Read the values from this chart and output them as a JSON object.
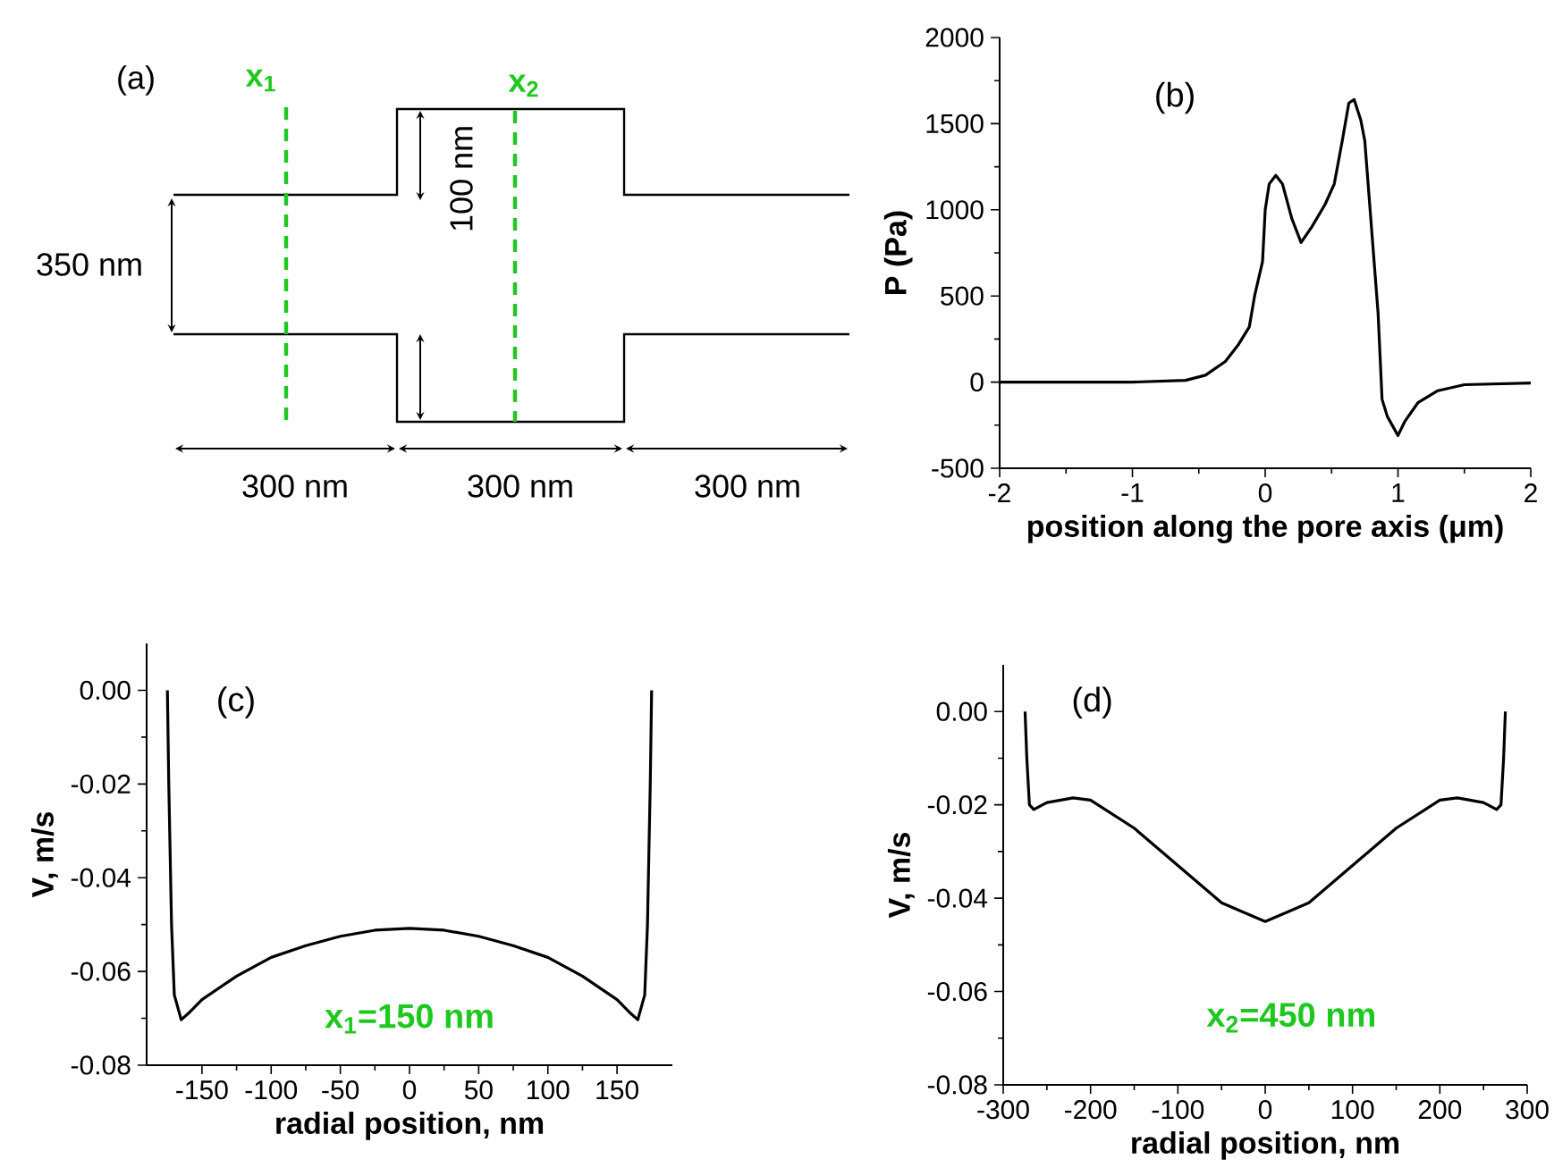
{
  "chart_data": [
    {
      "type": "other",
      "annotations": [
        "(a)",
        "x$_{1}$",
        "x$_{2}$",
        "350 nm",
        "100 nm",
        "300 nm",
        "300 nm",
        "300 nm"
      ]
    },
    {
      "type": "line",
      "xlabel": "position along the pore axis (μm)",
      "ylabel": "P (Pa)",
      "annotations": [
        "(b)"
      ],
      "xlim": [
        -2,
        2
      ],
      "ylim": [
        -500,
        2000
      ],
      "xticks": [
        -2,
        -1,
        0,
        1,
        2
      ],
      "yticks": [
        -500,
        0,
        500,
        1000,
        1500,
        2000
      ],
      "x": [
        -2,
        -1,
        -0.6,
        -0.45,
        -0.3,
        -0.2,
        -0.12,
        -0.08,
        -0.02,
        0.0,
        0.03,
        0.08,
        0.13,
        0.2,
        0.27,
        0.35,
        0.45,
        0.52,
        0.58,
        0.63,
        0.67,
        0.72,
        0.75,
        0.8,
        0.85,
        0.88,
        0.92,
        1.0,
        1.05,
        1.15,
        1.3,
        1.5,
        2
      ],
      "series": [
        {
          "color": "#000000",
          "values": [
            0,
            0,
            10,
            40,
            120,
            220,
            320,
            500,
            700,
            1000,
            1150,
            1200,
            1150,
            950,
            810,
            900,
            1030,
            1150,
            1400,
            1620,
            1640,
            1520,
            1400,
            900,
            400,
            -100,
            -200,
            -310,
            -230,
            -120,
            -50,
            -15,
            -5
          ]
        }
      ]
    },
    {
      "type": "line",
      "xlabel": "radial position, nm",
      "ylabel": "V, m/s",
      "annotations": [
        "(c)",
        "x$_{1}$=150 nm"
      ],
      "xlim": [
        -190,
        190
      ],
      "ylim": [
        -0.08,
        0.01
      ],
      "xticks": [
        -150,
        -100,
        -50,
        0,
        50,
        100,
        150
      ],
      "yticks": [
        {
          "value": -0.08,
          "label": "-0.08"
        },
        {
          "value": -0.06,
          "label": "-0.06"
        },
        {
          "value": -0.04,
          "label": "-0.04"
        },
        {
          "value": -0.02,
          "label": "-0.02"
        },
        {
          "value": 0,
          "label": "0.00"
        }
      ],
      "x": [
        -175,
        -174,
        -172,
        -170,
        -165,
        -160,
        -150,
        -125,
        -100,
        -75,
        -50,
        -25,
        0,
        25,
        50,
        75,
        100,
        125,
        150,
        160,
        165,
        170,
        172,
        174,
        175
      ],
      "series": [
        {
          "color": "#000000",
          "values": [
            0,
            -0.02,
            -0.05,
            -0.065,
            -0.0703,
            -0.069,
            -0.066,
            -0.061,
            -0.057,
            -0.0545,
            -0.0525,
            -0.0512,
            -0.0508,
            -0.0512,
            -0.0525,
            -0.0545,
            -0.057,
            -0.061,
            -0.066,
            -0.069,
            -0.0703,
            -0.065,
            -0.05,
            -0.02,
            0
          ]
        }
      ]
    },
    {
      "type": "line",
      "xlabel": "radial position, nm",
      "ylabel": "V, m/s",
      "annotations": [
        "(d)",
        "x$_{2}$=450 nm"
      ],
      "xlim": [
        -300,
        300
      ],
      "ylim": [
        -0.08,
        0.01
      ],
      "xticks": [
        -300,
        -200,
        -100,
        0,
        100,
        200,
        300
      ],
      "yticks": [
        {
          "value": -0.08,
          "label": "-0.08"
        },
        {
          "value": -0.06,
          "label": "-0.06"
        },
        {
          "value": -0.04,
          "label": "-0.04"
        },
        {
          "value": -0.02,
          "label": "-0.02"
        },
        {
          "value": 0,
          "label": "0.00"
        }
      ],
      "x": [
        -275,
        -273,
        -270,
        -265,
        -250,
        -220,
        -200,
        -150,
        -100,
        -50,
        0,
        50,
        100,
        150,
        200,
        220,
        250,
        265,
        270,
        273,
        275
      ],
      "series": [
        {
          "color": "#000000",
          "values": [
            0,
            -0.01,
            -0.02,
            -0.021,
            -0.0195,
            -0.0185,
            -0.019,
            -0.025,
            -0.033,
            -0.041,
            -0.045,
            -0.041,
            -0.033,
            -0.025,
            -0.019,
            -0.0185,
            -0.0195,
            -0.021,
            -0.02,
            -0.01,
            0
          ]
        }
      ]
    }
  ]
}
